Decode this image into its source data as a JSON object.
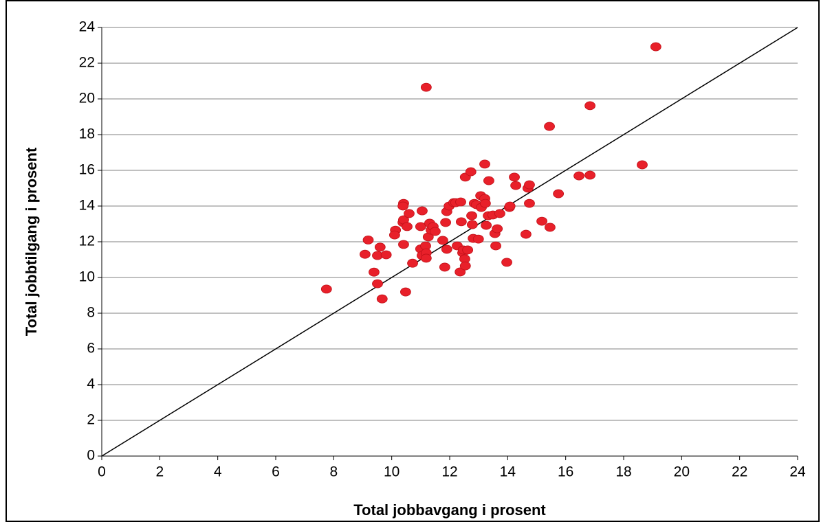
{
  "chart_data": {
    "type": "scatter",
    "x_label": "Total jobbavgang i prosent",
    "y_label": "Total jobbtilgang i prosent",
    "xlim": [
      0,
      24
    ],
    "xticks": [
      0,
      2,
      4,
      6,
      8,
      10,
      12,
      14,
      16,
      18,
      20,
      22,
      24
    ],
    "ylim": [
      0,
      24
    ],
    "yticks": [
      0,
      2,
      4,
      6,
      8,
      10,
      12,
      14,
      16,
      18,
      20,
      22,
      24
    ],
    "grid": true,
    "color": "#e8202a",
    "reference_line": {
      "x": [
        0,
        24
      ],
      "y": [
        0,
        24
      ],
      "color": "#000000"
    },
    "x": [
      7.75,
      9.08,
      9.19,
      9.39,
      9.51,
      9.51,
      9.6,
      9.67,
      9.81,
      10.13,
      10.1,
      10.39,
      10.41,
      10.39,
      10.41,
      10.41,
      10.48,
      10.53,
      10.6,
      10.72,
      11.05,
      11.0,
      11.0,
      11.05,
      11.17,
      11.19,
      11.19,
      11.19,
      11.26,
      11.31,
      11.36,
      11.43,
      11.5,
      11.76,
      11.83,
      11.86,
      11.9,
      11.9,
      11.98,
      12.14,
      12.26,
      12.21,
      12.38,
      12.36,
      12.4,
      12.45,
      12.47,
      12.52,
      12.54,
      12.54,
      12.62,
      12.73,
      12.76,
      12.78,
      12.81,
      12.85,
      12.92,
      12.99,
      13.07,
      13.09,
      13.21,
      13.21,
      13.23,
      13.26,
      13.33,
      13.35,
      13.49,
      13.56,
      13.59,
      13.64,
      13.73,
      13.97,
      14.06,
      14.08,
      14.23,
      14.28,
      14.63,
      14.7,
      14.75,
      14.75,
      15.18,
      15.46,
      15.44,
      15.75,
      16.46,
      16.84,
      16.84,
      18.64,
      19.11
    ],
    "y": [
      9.35,
      11.3,
      12.1,
      10.3,
      9.65,
      11.23,
      11.7,
      8.8,
      11.27,
      12.65,
      12.38,
      13.08,
      14.15,
      14.0,
      13.23,
      11.85,
      9.19,
      12.85,
      13.58,
      10.8,
      13.73,
      12.85,
      11.6,
      11.23,
      11.77,
      11.38,
      11.08,
      20.65,
      12.27,
      13.04,
      12.65,
      12.85,
      12.58,
      12.08,
      10.58,
      13.08,
      11.58,
      13.69,
      14.0,
      14.19,
      11.77,
      14.19,
      14.23,
      10.31,
      13.12,
      11.38,
      11.54,
      11.04,
      15.62,
      10.65,
      11.54,
      15.92,
      13.46,
      12.96,
      12.19,
      14.15,
      14.08,
      12.15,
      14.58,
      13.92,
      14.42,
      16.35,
      14.15,
      12.92,
      13.46,
      15.42,
      13.5,
      12.46,
      11.77,
      12.73,
      13.58,
      10.85,
      13.92,
      14.0,
      15.62,
      15.15,
      12.42,
      15.0,
      15.19,
      14.15,
      13.15,
      12.81,
      18.46,
      14.69,
      15.69,
      15.73,
      19.62,
      16.31,
      22.92
    ]
  }
}
